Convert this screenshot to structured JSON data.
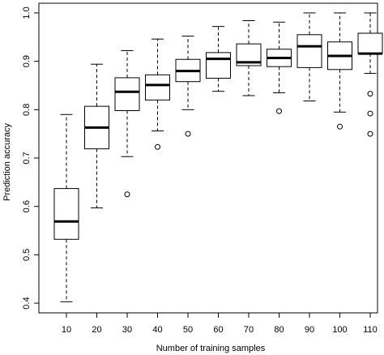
{
  "chart_data": {
    "type": "box",
    "xlabel": "Number of training samples",
    "ylabel": "Prediction accuracy",
    "ylim": [
      0.38,
      1.02
    ],
    "yticks": [
      0.4,
      0.5,
      0.6,
      0.7,
      0.8,
      0.9,
      1.0
    ],
    "ytick_labels": [
      "0.4",
      "0.5",
      "0.6",
      "0.7",
      "0.8",
      "0.9",
      "1.0"
    ],
    "categories": [
      "10",
      "20",
      "30",
      "40",
      "50",
      "60",
      "70",
      "80",
      "90",
      "100",
      "110"
    ],
    "boxes": [
      {
        "category": "10",
        "whisker_low": 0.403,
        "q1": 0.532,
        "median": 0.569,
        "q3": 0.637,
        "whisker_high": 0.79,
        "outliers": []
      },
      {
        "category": "20",
        "whisker_low": 0.597,
        "q1": 0.719,
        "median": 0.763,
        "q3": 0.807,
        "whisker_high": 0.894,
        "outliers": []
      },
      {
        "category": "30",
        "whisker_low": 0.703,
        "q1": 0.798,
        "median": 0.837,
        "q3": 0.866,
        "whisker_high": 0.922,
        "outliers": [
          0.625
        ]
      },
      {
        "category": "40",
        "whisker_low": 0.756,
        "q1": 0.82,
        "median": 0.851,
        "q3": 0.872,
        "whisker_high": 0.946,
        "outliers": [
          0.723
        ]
      },
      {
        "category": "50",
        "whisker_low": 0.8,
        "q1": 0.858,
        "median": 0.88,
        "q3": 0.904,
        "whisker_high": 0.952,
        "outliers": [
          0.75
        ]
      },
      {
        "category": "60",
        "whisker_low": 0.838,
        "q1": 0.865,
        "median": 0.905,
        "q3": 0.918,
        "whisker_high": 0.972,
        "outliers": []
      },
      {
        "category": "70",
        "whisker_low": 0.829,
        "q1": 0.891,
        "median": 0.898,
        "q3": 0.936,
        "whisker_high": 0.984,
        "outliers": []
      },
      {
        "category": "80",
        "whisker_low": 0.835,
        "q1": 0.889,
        "median": 0.907,
        "q3": 0.925,
        "whisker_high": 0.981,
        "outliers": [
          0.797
        ]
      },
      {
        "category": "90",
        "whisker_low": 0.818,
        "q1": 0.887,
        "median": 0.931,
        "q3": 0.955,
        "whisker_high": 1.0,
        "outliers": []
      },
      {
        "category": "100",
        "whisker_low": 0.795,
        "q1": 0.883,
        "median": 0.911,
        "q3": 0.94,
        "whisker_high": 1.0,
        "outliers": [
          0.765
        ]
      },
      {
        "category": "110",
        "whisker_low": 0.875,
        "q1": 0.916,
        "median": 0.916,
        "q3": 0.958,
        "whisker_high": 1.0,
        "outliers": [
          0.833,
          0.792,
          0.75
        ]
      }
    ],
    "colors": {
      "box_fill": "#ffffff",
      "stroke": "#000000",
      "median": "#000000"
    },
    "grid": false,
    "legend": "none"
  }
}
